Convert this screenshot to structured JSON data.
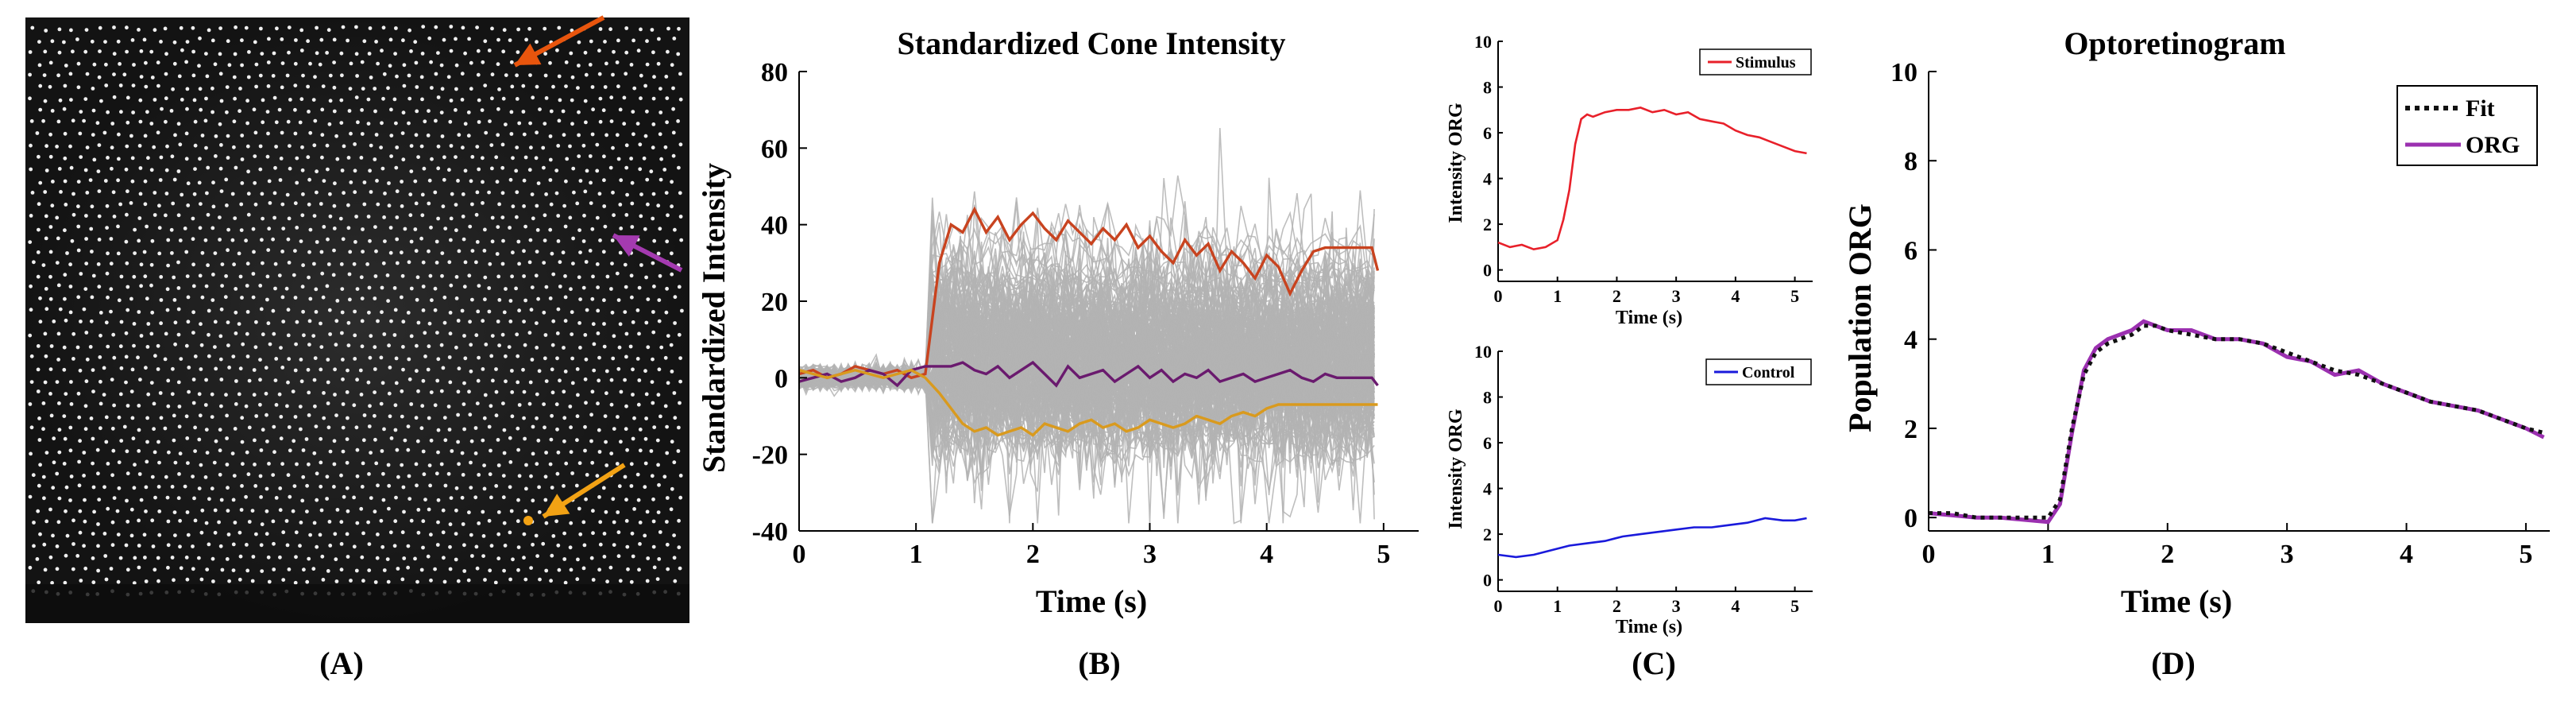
{
  "panels": {
    "a": {
      "caption": "(A)",
      "annotations": [
        {
          "color": "#e8550d"
        },
        {
          "color": "#a43ab0"
        },
        {
          "color": "#f2a214"
        }
      ]
    },
    "b": {
      "caption": "(B)",
      "chart_data": {
        "type": "line",
        "title": "Standardized Cone Intensity",
        "xlabel": "Time (s)",
        "ylabel": "Standardized Intensity",
        "xlim": [
          0,
          5.3
        ],
        "ylim": [
          -40,
          80
        ],
        "xticks": [
          0,
          1,
          2,
          3,
          4,
          5
        ],
        "yticks": [
          -40,
          -20,
          0,
          20,
          40,
          60,
          80
        ],
        "x": [
          0,
          0.12,
          0.24,
          0.36,
          0.48,
          0.6,
          0.72,
          0.84,
          0.96,
          1.08,
          1.2,
          1.3,
          1.4,
          1.5,
          1.6,
          1.7,
          1.8,
          1.9,
          2.0,
          2.1,
          2.2,
          2.3,
          2.4,
          2.5,
          2.6,
          2.7,
          2.8,
          2.9,
          3.0,
          3.1,
          3.2,
          3.3,
          3.4,
          3.5,
          3.6,
          3.7,
          3.8,
          3.9,
          4.0,
          4.1,
          4.2,
          4.3,
          4.4,
          4.5,
          4.6,
          4.7,
          4.8,
          4.9,
          4.95
        ],
        "series": [
          {
            "name": "Highlighted cone (orange-red)",
            "color": "#c8431f",
            "values": [
              1,
              2,
              0,
              1,
              3,
              2,
              1,
              2,
              0,
              1,
              30,
              40,
              38,
              44,
              38,
              42,
              36,
              40,
              43,
              39,
              36,
              41,
              38,
              35,
              39,
              36,
              40,
              34,
              37,
              33,
              30,
              36,
              32,
              35,
              28,
              33,
              30,
              26,
              32,
              29,
              22,
              28,
              33,
              34,
              34,
              34,
              34,
              34,
              28
            ]
          },
          {
            "name": "Highlighted cone (purple)",
            "color": "#6a1a6e",
            "values": [
              -1,
              0,
              1,
              -1,
              0,
              2,
              1,
              -2,
              2,
              3,
              3,
              3,
              4,
              2,
              1,
              3,
              0,
              2,
              4,
              1,
              -2,
              3,
              0,
              1,
              2,
              -1,
              1,
              3,
              0,
              2,
              -1,
              1,
              0,
              2,
              -1,
              0,
              1,
              -1,
              0,
              1,
              2,
              0,
              -1,
              1,
              0,
              0,
              0,
              0,
              -2
            ]
          },
          {
            "name": "Highlighted cone (yellow-orange)",
            "color": "#d99a1e",
            "values": [
              2,
              1,
              0,
              1,
              2,
              1,
              0,
              1,
              2,
              0,
              -4,
              -8,
              -12,
              -14,
              -13,
              -15,
              -14,
              -13,
              -15,
              -12,
              -13,
              -14,
              -12,
              -11,
              -13,
              -12,
              -14,
              -13,
              -11,
              -12,
              -13,
              -12,
              -10,
              -11,
              -12,
              -10,
              -9,
              -10,
              -8,
              -7,
              -7,
              -7,
              -7,
              -7,
              -7,
              -7,
              -7,
              -7,
              -7
            ]
          }
        ],
        "background": {
          "description_count": "many",
          "color": "#b3b3b3"
        }
      }
    },
    "c1": {
      "caption": "(C)",
      "chart_data": {
        "type": "line",
        "xlabel": "Time (s)",
        "ylabel": "Intensity ORG",
        "xlim": [
          0,
          5.3
        ],
        "ylim": [
          -0.5,
          10
        ],
        "xticks": [
          0,
          1,
          2,
          3,
          4,
          5
        ],
        "yticks": [
          0,
          2,
          4,
          6,
          8,
          10
        ],
        "legend": "Stimulus",
        "color": "#e8202a",
        "x": [
          0,
          0.2,
          0.4,
          0.6,
          0.8,
          1.0,
          1.1,
          1.2,
          1.3,
          1.4,
          1.5,
          1.6,
          1.8,
          2.0,
          2.2,
          2.4,
          2.6,
          2.8,
          3.0,
          3.2,
          3.4,
          3.6,
          3.8,
          4.0,
          4.2,
          4.4,
          4.6,
          4.8,
          5.0,
          5.2
        ],
        "values": [
          1.2,
          1.0,
          1.1,
          0.9,
          1.0,
          1.3,
          2.2,
          3.5,
          5.5,
          6.6,
          6.8,
          6.7,
          6.9,
          7.0,
          7.0,
          7.1,
          6.9,
          7.0,
          6.8,
          6.9,
          6.6,
          6.5,
          6.4,
          6.1,
          5.9,
          5.8,
          5.6,
          5.4,
          5.2,
          5.1
        ]
      }
    },
    "c2": {
      "chart_data": {
        "type": "line",
        "xlabel": "Time (s)",
        "ylabel": "Intensity ORG",
        "xlim": [
          0,
          5.3
        ],
        "ylim": [
          -0.5,
          10
        ],
        "xticks": [
          0,
          1,
          2,
          3,
          4,
          5
        ],
        "yticks": [
          0,
          2,
          4,
          6,
          8,
          10
        ],
        "legend": "Control",
        "color": "#1a1adb",
        "x": [
          0,
          0.3,
          0.6,
          0.9,
          1.2,
          1.5,
          1.8,
          2.1,
          2.4,
          2.7,
          3.0,
          3.3,
          3.6,
          3.9,
          4.2,
          4.5,
          4.8,
          5.0,
          5.2
        ],
        "values": [
          1.1,
          1.0,
          1.1,
          1.3,
          1.5,
          1.6,
          1.7,
          1.9,
          2.0,
          2.1,
          2.2,
          2.3,
          2.3,
          2.4,
          2.5,
          2.7,
          2.6,
          2.6,
          2.7
        ]
      }
    },
    "d": {
      "caption": "(D)",
      "chart_data": {
        "type": "line",
        "title": "Optoretinogram",
        "xlabel": "Time (s)",
        "ylabel": "Population ORG",
        "xlim": [
          0,
          5.2
        ],
        "ylim": [
          -0.3,
          10
        ],
        "xticks": [
          0,
          1,
          2,
          3,
          4,
          5
        ],
        "yticks": [
          0,
          2,
          4,
          6,
          8,
          10
        ],
        "x": [
          0,
          0.2,
          0.4,
          0.6,
          0.8,
          1.0,
          1.1,
          1.2,
          1.3,
          1.4,
          1.5,
          1.6,
          1.7,
          1.8,
          1.9,
          2.0,
          2.2,
          2.4,
          2.6,
          2.8,
          3.0,
          3.2,
          3.4,
          3.6,
          3.8,
          4.0,
          4.2,
          4.4,
          4.6,
          4.8,
          5.0,
          5.15
        ],
        "series": [
          {
            "name": "Fit",
            "style": "dotted",
            "color": "#111111",
            "values": [
              0.1,
              0.1,
              0.0,
              0.0,
              0.0,
              0.0,
              0.4,
              2.0,
              3.2,
              3.7,
              3.9,
              4.0,
              4.1,
              4.3,
              4.3,
              4.2,
              4.1,
              4.0,
              4.0,
              3.9,
              3.7,
              3.5,
              3.3,
              3.2,
              3.0,
              2.8,
              2.6,
              2.5,
              2.4,
              2.2,
              2.0,
              1.9
            ]
          },
          {
            "name": "ORG",
            "style": "solid",
            "color": "#9b30b0",
            "values": [
              0.1,
              0.05,
              0.0,
              0.0,
              -0.05,
              -0.1,
              0.3,
              1.9,
              3.3,
              3.8,
              4.0,
              4.1,
              4.2,
              4.4,
              4.3,
              4.2,
              4.2,
              4.0,
              4.0,
              3.9,
              3.6,
              3.5,
              3.2,
              3.3,
              3.0,
              2.8,
              2.6,
              2.5,
              2.4,
              2.2,
              2.0,
              1.8
            ]
          }
        ]
      }
    }
  }
}
